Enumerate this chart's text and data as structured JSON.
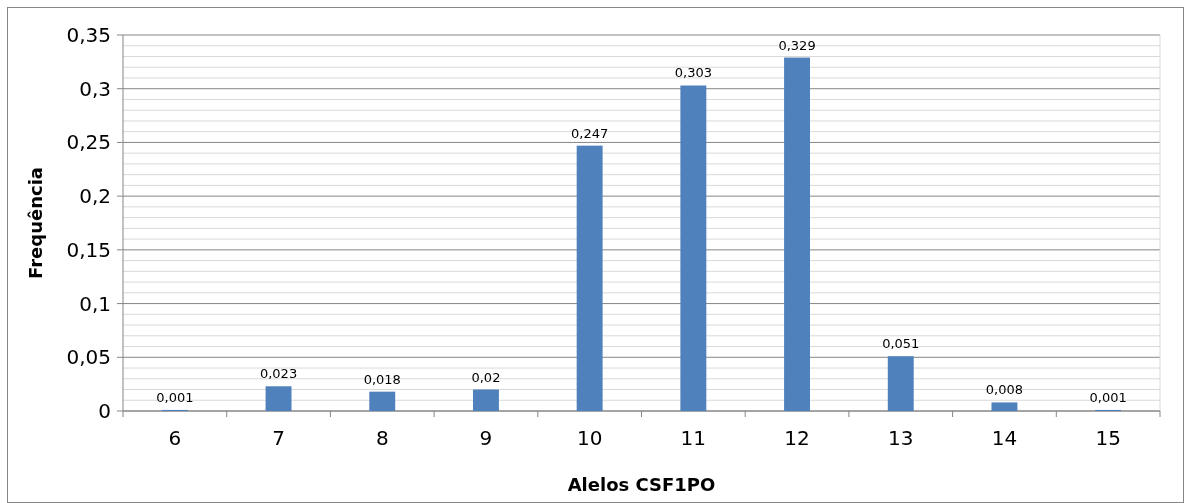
{
  "chart_data": {
    "type": "bar",
    "xlabel": "Alelos  CSF1PO",
    "ylabel": "Frequência",
    "categories": [
      "6",
      "7",
      "8",
      "9",
      "10",
      "11",
      "12",
      "13",
      "14",
      "15"
    ],
    "values": [
      0.001,
      0.023,
      0.018,
      0.02,
      0.247,
      0.303,
      0.329,
      0.051,
      0.008,
      0.001
    ],
    "value_labels": [
      "0,001",
      "0,023",
      "0,018",
      "0,02",
      "0,247",
      "0,303",
      "0,329",
      "0,051",
      "0,008",
      "0,001"
    ],
    "color": "#4f81bd",
    "ylim": [
      0,
      0.35
    ],
    "yticks": [
      0,
      {
        "value": 0.01,
        "label": null
      },
      {
        "value": 0.02,
        "label": null
      },
      {
        "value": 0.03,
        "label": null
      },
      {
        "value": 0.04,
        "label": null
      },
      {
        "value": 0.05,
        "label": "0,05"
      },
      {
        "value": 0.06,
        "label": null
      },
      {
        "value": 0.07,
        "label": null
      },
      {
        "value": 0.08,
        "label": null
      },
      {
        "value": 0.09,
        "label": null
      },
      {
        "value": 0.1,
        "label": "0,1"
      },
      {
        "value": 0.11,
        "label": null
      },
      {
        "value": 0.12,
        "label": null
      },
      {
        "value": 0.13,
        "label": null
      },
      {
        "value": 0.14,
        "label": null
      },
      {
        "value": 0.15,
        "label": "0,15"
      },
      {
        "value": 0.16,
        "label": null
      },
      {
        "value": 0.17,
        "label": null
      },
      {
        "value": 0.18,
        "label": null
      },
      {
        "value": 0.19,
        "label": null
      },
      {
        "value": 0.2,
        "label": "0,2"
      },
      {
        "value": 0.21,
        "label": null
      },
      {
        "value": 0.22,
        "label": null
      },
      {
        "value": 0.23,
        "label": null
      },
      {
        "value": 0.24,
        "label": null
      },
      {
        "value": 0.25,
        "label": "0,25"
      },
      {
        "value": 0.26,
        "label": null
      },
      {
        "value": 0.27,
        "label": null
      },
      {
        "value": 0.28,
        "label": null
      },
      {
        "value": 0.29,
        "label": null
      },
      {
        "value": 0.3,
        "label": "0,3"
      },
      {
        "value": 0.31,
        "label": null
      },
      {
        "value": 0.32,
        "label": null
      },
      {
        "value": 0.33,
        "label": null
      },
      {
        "value": 0.34,
        "label": null
      },
      {
        "value": 0.35,
        "label": "0,35"
      }
    ],
    "grid": true
  }
}
